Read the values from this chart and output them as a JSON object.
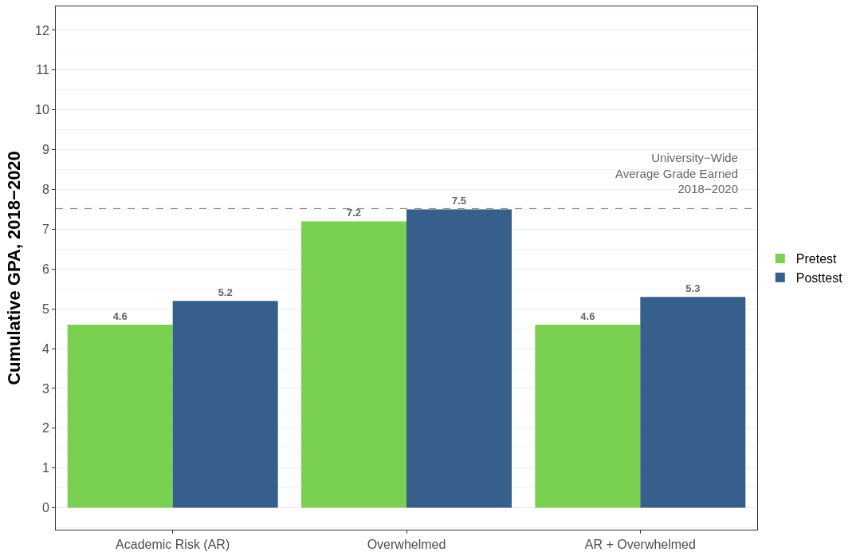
{
  "chart_data": {
    "type": "bar",
    "ylabel": "Cumulative GPA, 2018−2020",
    "categories": [
      "Academic Risk (AR)",
      "Overwhelmed",
      "AR + Overwhelmed"
    ],
    "series": [
      {
        "name": "Pretest",
        "color": "#7ad151",
        "values": [
          4.6,
          7.2,
          4.6
        ]
      },
      {
        "name": "Posttest",
        "color": "#365f8c",
        "values": [
          5.2,
          7.5,
          5.3
        ]
      }
    ],
    "ylim": [
      -0.55,
      12.6
    ],
    "yticks": [
      0,
      1,
      2,
      3,
      4,
      5,
      6,
      7,
      8,
      9,
      10,
      11,
      12
    ],
    "ref_lines": [
      {
        "axis": "y",
        "value": 7.52,
        "label": "University−Wide\nAverage Grade Earned\n2018−2020",
        "color": "#7f7f7f",
        "line_style": "dashed"
      }
    ],
    "data_labels": true,
    "grid": true,
    "legend": "right"
  }
}
